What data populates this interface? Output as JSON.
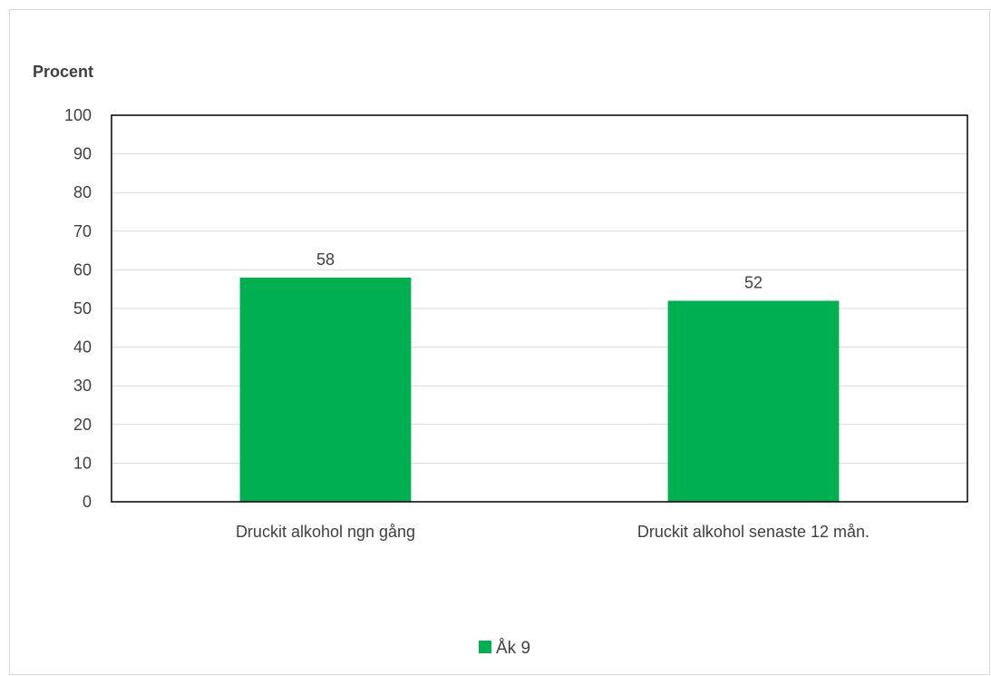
{
  "chart_data": {
    "type": "bar",
    "categories": [
      "Druckit alkohol ngn gång",
      "Druckit alkohol senaste 12 mån."
    ],
    "series": [
      {
        "name": "Åk 9",
        "values": [
          58,
          52
        ],
        "color": "#00b050"
      }
    ],
    "ylabel": "Procent",
    "ylim": [
      0,
      100
    ],
    "yticks": [
      0,
      10,
      20,
      30,
      40,
      50,
      60,
      70,
      80,
      90,
      100
    ],
    "grid": true,
    "data_labels": true,
    "legend_position": "bottom"
  }
}
